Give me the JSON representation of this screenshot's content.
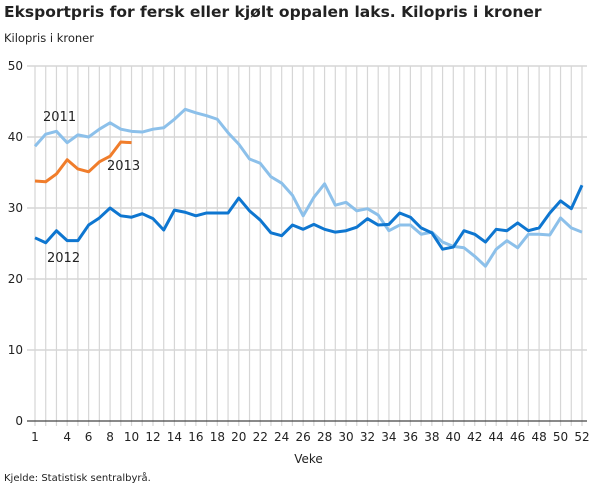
{
  "chart_data": {
    "type": "line",
    "title": "Eksportpris for fersk eller kjølt oppalen laks. Kilopris i kroner",
    "ylabel": "Kilopris i kroner",
    "xlabel": "Veke",
    "ylim": [
      0,
      50
    ],
    "yticks": [
      0,
      10,
      20,
      30,
      40,
      50
    ],
    "xlim": [
      1,
      52
    ],
    "xticks": [
      1,
      4,
      6,
      8,
      10,
      12,
      14,
      16,
      18,
      20,
      22,
      24,
      26,
      28,
      30,
      32,
      34,
      36,
      38,
      40,
      42,
      44,
      46,
      48,
      50,
      52
    ],
    "grid": true,
    "source": "Kjelde: Statistisk sentralbyrå.",
    "series": [
      {
        "name": "2011",
        "color": "#8cc0ea",
        "values": [
          38.7,
          40.4,
          40.8,
          39.2,
          40.3,
          40,
          41.1,
          42,
          41.1,
          40.8,
          40.7,
          41.1,
          41.3,
          42.5,
          43.9,
          43.4,
          43,
          42.5,
          40.6,
          39,
          36.9,
          36.3,
          34.4,
          33.5,
          31.8,
          28.9,
          31.5,
          33.4,
          30.4,
          30.8,
          29.6,
          29.9,
          29,
          26.8,
          27.6,
          27.6,
          26.3,
          26.6,
          25.2,
          24.6,
          24.4,
          23.2,
          21.8,
          24.2,
          25.4,
          24.4,
          26.3,
          26.3,
          26.2,
          28.6,
          27.2,
          26.6
        ]
      },
      {
        "name": "2012",
        "color": "#0e76d0",
        "values": [
          25.8,
          25.1,
          26.8,
          25.4,
          25.4,
          27.6,
          28.6,
          30,
          28.9,
          28.7,
          29.2,
          28.5,
          26.9,
          29.7,
          29.4,
          28.9,
          29.3,
          29.3,
          29.3,
          31.4,
          29.6,
          28.3,
          26.5,
          26.1,
          27.6,
          27,
          27.7,
          27,
          26.6,
          26.8,
          27.3,
          28.5,
          27.6,
          27.7,
          29.3,
          28.7,
          27.2,
          26.5,
          24.2,
          24.5,
          26.8,
          26.3,
          25.2,
          27,
          26.8,
          27.9,
          26.8,
          27.2,
          29.3,
          31,
          29.9,
          33.2
        ]
      },
      {
        "name": "2013",
        "color": "#f07d2b",
        "values": [
          33.8,
          33.7,
          34.8,
          36.8,
          35.5,
          35.1,
          36.5,
          37.3,
          39.3,
          39.2
        ]
      }
    ]
  }
}
